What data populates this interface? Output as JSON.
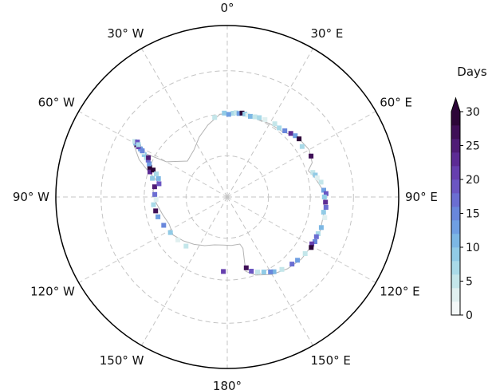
{
  "map": {
    "projection": "south-polar-stereographic",
    "graticule": {
      "meridian_step_deg": 30,
      "lon_labels": [
        {
          "lon": 0,
          "text": "0°"
        },
        {
          "lon": 30,
          "text": "30° E"
        },
        {
          "lon": 60,
          "text": "60° E"
        },
        {
          "lon": 90,
          "text": "90° E"
        },
        {
          "lon": 120,
          "text": "120° E"
        },
        {
          "lon": 150,
          "text": "150° E"
        },
        {
          "lon": 180,
          "text": "180°"
        },
        {
          "lon": -150,
          "text": "150° W"
        },
        {
          "lon": -120,
          "text": "120° W"
        },
        {
          "lon": -90,
          "text": "90° W"
        },
        {
          "lon": -60,
          "text": "60° W"
        },
        {
          "lon": -30,
          "text": "30° W"
        }
      ],
      "line_style": "dashed",
      "line_color": "#c4c4c4"
    },
    "coastline_color": "#b4b4b4",
    "coastline_lat_lon": [
      [
        -70.0,
        0
      ],
      [
        -69.8,
        10
      ],
      [
        -69.9,
        20
      ],
      [
        -69.6,
        30
      ],
      [
        -69.4,
        40
      ],
      [
        -67.8,
        50
      ],
      [
        -67.3,
        60
      ],
      [
        -68.0,
        68
      ],
      [
        -69.5,
        72
      ],
      [
        -68.5,
        77
      ],
      [
        -66.5,
        88
      ],
      [
        -66.5,
        100
      ],
      [
        -66.3,
        110
      ],
      [
        -66.6,
        120
      ],
      [
        -66.8,
        130
      ],
      [
        -67.5,
        140
      ],
      [
        -68.5,
        150
      ],
      [
        -70.0,
        160
      ],
      [
        -71.5,
        166
      ],
      [
        -74.0,
        165
      ],
      [
        -77.0,
        163
      ],
      [
        -78.2,
        165
      ],
      [
        -78.2,
        175
      ],
      [
        -78.3,
        -175
      ],
      [
        -78.0,
        -165
      ],
      [
        -77.0,
        -155
      ],
      [
        -76.0,
        -145
      ],
      [
        -75.0,
        -135
      ],
      [
        -74.0,
        -125
      ],
      [
        -74.5,
        -115
      ],
      [
        -73.8,
        -105
      ],
      [
        -72.8,
        -95
      ],
      [
        -72.0,
        -85
      ],
      [
        -73.0,
        -78
      ],
      [
        -70.0,
        -72
      ],
      [
        -67.0,
        -67
      ],
      [
        -64.0,
        -60
      ],
      [
        -64.5,
        -58
      ],
      [
        -68.0,
        -62
      ],
      [
        -73.0,
        -60
      ],
      [
        -77.0,
        -48
      ],
      [
        -76.0,
        -35
      ],
      [
        -74.0,
        -25
      ],
      [
        -72.0,
        -15
      ],
      [
        -70.0,
        -5
      ],
      [
        -70.0,
        0
      ]
    ],
    "events": [
      [
        -69.8,
        4,
        6
      ],
      [
        -69.6,
        6,
        4
      ],
      [
        -69.7,
        8,
        12
      ],
      [
        -69.5,
        10,
        28
      ],
      [
        -69.6,
        12,
        8
      ],
      [
        -69.7,
        14,
        3
      ],
      [
        -69.8,
        16,
        10
      ],
      [
        -69.6,
        19,
        5
      ],
      [
        -69.4,
        22,
        7
      ],
      [
        -69.3,
        26,
        2
      ],
      [
        -69.0,
        33,
        4
      ],
      [
        -69.2,
        37,
        6
      ],
      [
        -68.9,
        41,
        14
      ],
      [
        -68.4,
        45,
        22
      ],
      [
        -68.0,
        48,
        12
      ],
      [
        -67.8,
        51,
        28
      ],
      [
        -68.3,
        56,
        6
      ],
      [
        -67.6,
        64,
        26
      ],
      [
        -68.6,
        74,
        5
      ],
      [
        -68.2,
        76,
        8
      ],
      [
        -67.9,
        78,
        3
      ],
      [
        -67.2,
        81,
        4
      ],
      [
        -66.8,
        86,
        13
      ],
      [
        -66.3,
        88,
        18
      ],
      [
        -66.7,
        90,
        9
      ],
      [
        -66.4,
        93,
        22
      ],
      [
        -66.2,
        96,
        16
      ],
      [
        -66.6,
        99,
        8
      ],
      [
        -66.1,
        102,
        3
      ],
      [
        -66.3,
        108,
        10
      ],
      [
        -66.5,
        112,
        6
      ],
      [
        -66.6,
        114,
        17
      ],
      [
        -66.4,
        117,
        14
      ],
      [
        -66.8,
        119,
        21
      ],
      [
        -66.5,
        121,
        28
      ],
      [
        -66.9,
        126,
        5
      ],
      [
        -67.3,
        132,
        12
      ],
      [
        -67.6,
        136,
        16
      ],
      [
        -68.2,
        143,
        4
      ],
      [
        -68.8,
        148,
        11
      ],
      [
        -69.2,
        150,
        15
      ],
      [
        -69.9,
        154,
        8
      ],
      [
        -70.5,
        158,
        4
      ],
      [
        -71.2,
        162,
        18
      ],
      [
        -72.3,
        165,
        26
      ],
      [
        -72.0,
        -177,
        20
      ],
      [
        -74.5,
        -140,
        5
      ],
      [
        -74.2,
        -131,
        3
      ],
      [
        -73.8,
        -122,
        8
      ],
      [
        -73.2,
        -114,
        14
      ],
      [
        -72.6,
        -106,
        12
      ],
      [
        -72.4,
        -101,
        27
      ],
      [
        -72.1,
        -96,
        6
      ],
      [
        -72.8,
        -92,
        3
      ],
      [
        -72.5,
        -88,
        16
      ],
      [
        -72.3,
        -82,
        24
      ],
      [
        -71.4,
        -76,
        9
      ],
      [
        -70.4,
        -72,
        22
      ],
      [
        -70.0,
        -69,
        28
      ],
      [
        -69.6,
        -67,
        13
      ],
      [
        -69.0,
        -65,
        17
      ],
      [
        -68.4,
        -64,
        6
      ],
      [
        -67.6,
        -63,
        9
      ],
      [
        -67.0,
        -62,
        3
      ],
      [
        -66.2,
        -61,
        12
      ],
      [
        -65.6,
        -60.5,
        20
      ],
      [
        -65.0,
        -60,
        27
      ],
      [
        -64.6,
        -59.5,
        11
      ],
      [
        -64.2,
        -59,
        5
      ],
      [
        -64.8,
        -58.5,
        18
      ],
      [
        -65.3,
        -59.5,
        7
      ],
      [
        -66.8,
        -61.5,
        14
      ],
      [
        -68.8,
        -63.5,
        24
      ],
      [
        -71.0,
        -70,
        29
      ],
      [
        -72.8,
        -75,
        10
      ],
      [
        -73.2,
        -79,
        19
      ],
      [
        -72.0,
        -72,
        6
      ],
      [
        -70.6,
        -9,
        4
      ],
      [
        -69.8,
        -2,
        9
      ],
      [
        -70.1,
        1,
        12
      ]
    ]
  },
  "colorbar": {
    "label": "Days",
    "min": 0,
    "max": 30,
    "step": 2,
    "ticks": [
      "0",
      "5",
      "10",
      "15",
      "20",
      "25",
      "30"
    ],
    "extend": "max",
    "colors": [
      "#f4f8f8",
      "#e0f0f0",
      "#c4e6ea",
      "#a9dae8",
      "#91cbe6",
      "#7cb7e4",
      "#6f9fe2",
      "#6987db",
      "#6b6ed2",
      "#6b56c2",
      "#663fae",
      "#5c2b94",
      "#4f1c76",
      "#3f0f57",
      "#2c0638"
    ]
  }
}
